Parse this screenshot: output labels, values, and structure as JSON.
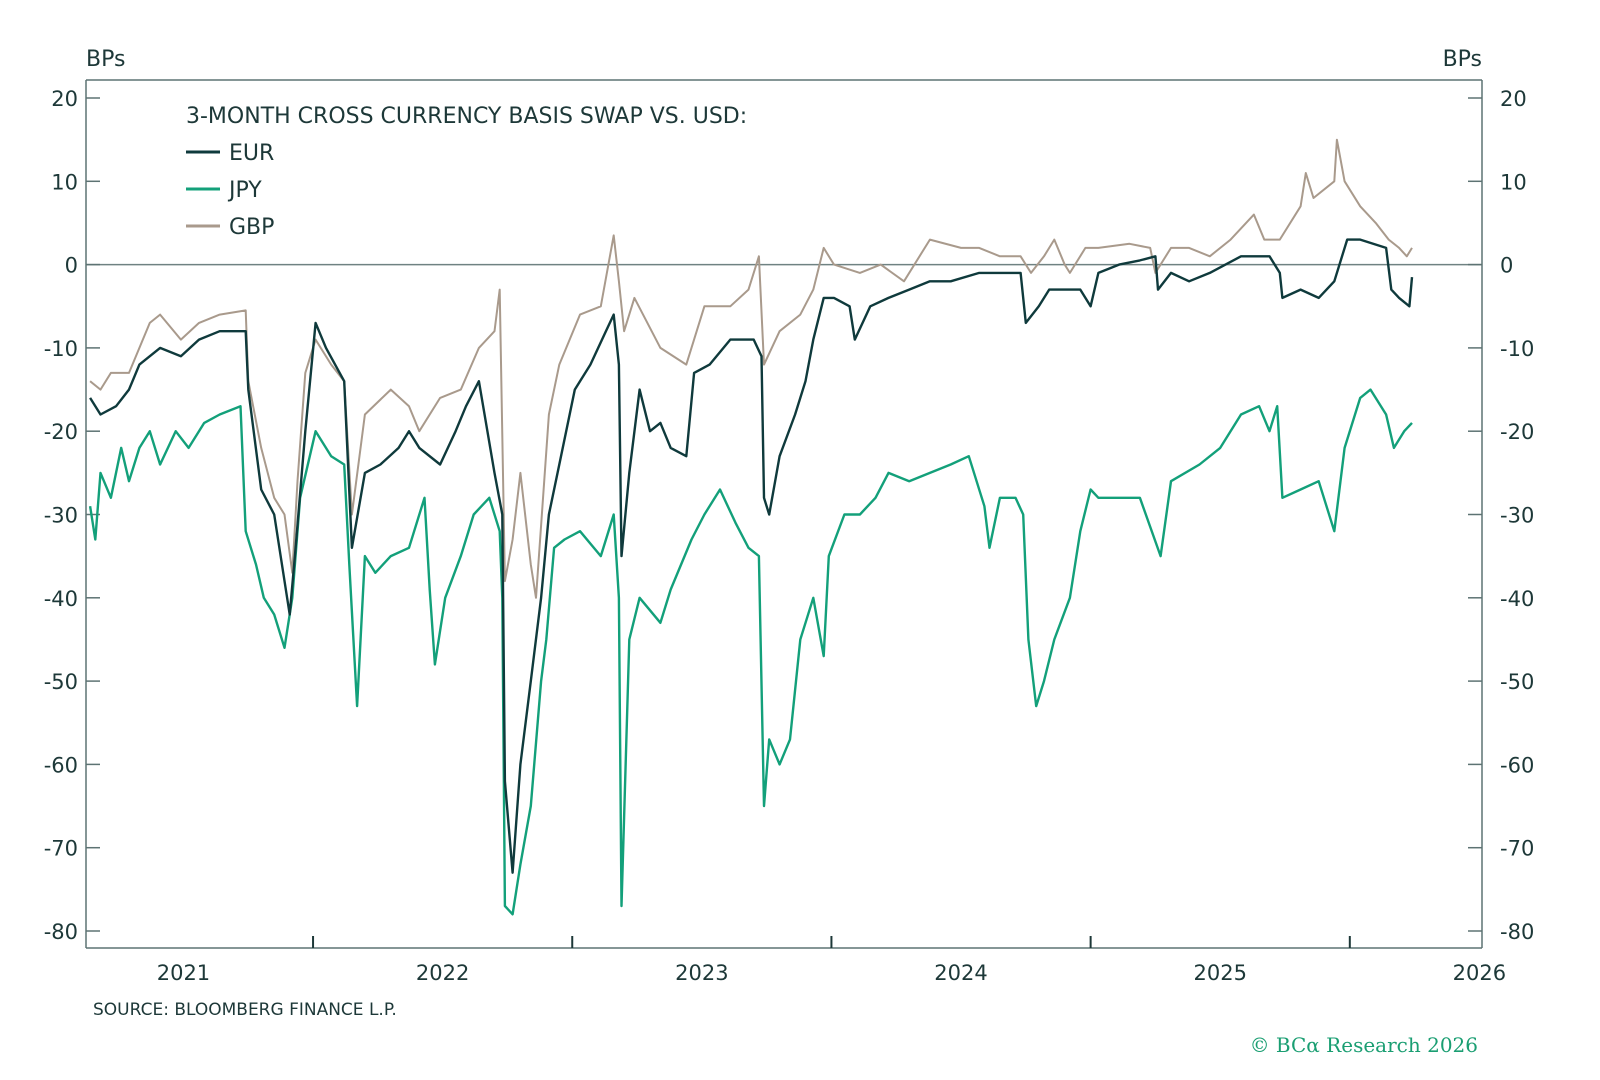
{
  "chart_data": {
    "type": "line",
    "title": "3-MONTH CROSS CURRENCY BASIS SWAP VS. USD:",
    "ylabel_left": "BPs",
    "ylabel_right": "BPs",
    "ylim": [
      -82,
      22
    ],
    "xlim": [
      2021.124,
      2026.51
    ],
    "yticks": [
      20,
      10,
      0,
      -10,
      -20,
      -30,
      -40,
      -50,
      -60,
      -70,
      -80
    ],
    "xticks": [
      2022,
      2023,
      2024,
      2025,
      2026
    ],
    "xtick_labels": [
      "2021",
      "2022",
      "2023",
      "2024",
      "2025",
      "2026"
    ],
    "zero_line": true,
    "grid": false,
    "legend_position": "top-left",
    "source": "SOURCE: BLOOMBERG FINANCE L.P.",
    "copyright": "© BCα Research 2026",
    "series": [
      {
        "name": "EUR",
        "color": "#0f3a3c",
        "points": [
          [
            2021.14,
            -16
          ],
          [
            2021.18,
            -18
          ],
          [
            2021.24,
            -17
          ],
          [
            2021.29,
            -15
          ],
          [
            2021.33,
            -12
          ],
          [
            2021.41,
            -10
          ],
          [
            2021.49,
            -11
          ],
          [
            2021.56,
            -9
          ],
          [
            2021.64,
            -8
          ],
          [
            2021.74,
            -8
          ],
          [
            2021.75,
            -15
          ],
          [
            2021.8,
            -27
          ],
          [
            2021.85,
            -30
          ],
          [
            2021.91,
            -42
          ],
          [
            2021.93,
            -35
          ],
          [
            2021.97,
            -20
          ],
          [
            2022.01,
            -7
          ],
          [
            2022.05,
            -10
          ],
          [
            2022.12,
            -14
          ],
          [
            2022.15,
            -34
          ],
          [
            2022.2,
            -25
          ],
          [
            2022.26,
            -24
          ],
          [
            2022.33,
            -22
          ],
          [
            2022.37,
            -20
          ],
          [
            2022.41,
            -22
          ],
          [
            2022.49,
            -24
          ],
          [
            2022.55,
            -20
          ],
          [
            2022.59,
            -17
          ],
          [
            2022.64,
            -14
          ],
          [
            2022.7,
            -25
          ],
          [
            2022.73,
            -30
          ],
          [
            2022.74,
            -62
          ],
          [
            2022.77,
            -73
          ],
          [
            2022.8,
            -60
          ],
          [
            2022.84,
            -50
          ],
          [
            2022.88,
            -40
          ],
          [
            2022.91,
            -30
          ],
          [
            2022.95,
            -24
          ],
          [
            2023.01,
            -15
          ],
          [
            2023.07,
            -12
          ],
          [
            2023.13,
            -8
          ],
          [
            2023.16,
            -6
          ],
          [
            2023.18,
            -12
          ],
          [
            2023.19,
            -35
          ],
          [
            2023.22,
            -25
          ],
          [
            2023.26,
            -15
          ],
          [
            2023.3,
            -20
          ],
          [
            2023.34,
            -19
          ],
          [
            2023.38,
            -22
          ],
          [
            2023.44,
            -23
          ],
          [
            2023.47,
            -13
          ],
          [
            2023.53,
            -12
          ],
          [
            2023.61,
            -9
          ],
          [
            2023.7,
            -9
          ],
          [
            2023.73,
            -11
          ],
          [
            2023.74,
            -28
          ],
          [
            2023.76,
            -30
          ],
          [
            2023.8,
            -23
          ],
          [
            2023.86,
            -18
          ],
          [
            2023.9,
            -14
          ],
          [
            2023.93,
            -9
          ],
          [
            2023.97,
            -4
          ],
          [
            2024.01,
            -4
          ],
          [
            2024.07,
            -5
          ],
          [
            2024.09,
            -9
          ],
          [
            2024.15,
            -5
          ],
          [
            2024.22,
            -4
          ],
          [
            2024.3,
            -3
          ],
          [
            2024.38,
            -2
          ],
          [
            2024.46,
            -2
          ],
          [
            2024.57,
            -1
          ],
          [
            2024.65,
            -1
          ],
          [
            2024.73,
            -1
          ],
          [
            2024.75,
            -7
          ],
          [
            2024.8,
            -5
          ],
          [
            2024.84,
            -3
          ],
          [
            2024.88,
            -3
          ],
          [
            2024.96,
            -3
          ],
          [
            2025.0,
            -5
          ],
          [
            2025.03,
            -1
          ],
          [
            2025.11,
            0
          ],
          [
            2025.19,
            0.5
          ],
          [
            2025.25,
            1
          ],
          [
            2025.26,
            -3
          ],
          [
            2025.31,
            -1
          ],
          [
            2025.38,
            -2
          ],
          [
            2025.46,
            -1
          ],
          [
            2025.58,
            1
          ],
          [
            2025.69,
            1
          ],
          [
            2025.73,
            -1
          ],
          [
            2025.74,
            -4
          ],
          [
            2025.81,
            -3
          ],
          [
            2025.88,
            -4
          ],
          [
            2025.94,
            -2
          ],
          [
            2025.99,
            3
          ],
          [
            2026.04,
            3
          ],
          [
            2026.14,
            2
          ],
          [
            2026.16,
            -3
          ],
          [
            2026.19,
            -4
          ],
          [
            2026.23,
            -5
          ],
          [
            2026.24,
            -1.5
          ]
        ]
      },
      {
        "name": "JPY",
        "color": "#13a07a",
        "points": [
          [
            2021.14,
            -29
          ],
          [
            2021.16,
            -33
          ],
          [
            2021.18,
            -25
          ],
          [
            2021.22,
            -28
          ],
          [
            2021.26,
            -22
          ],
          [
            2021.29,
            -26
          ],
          [
            2021.33,
            -22
          ],
          [
            2021.37,
            -20
          ],
          [
            2021.41,
            -24
          ],
          [
            2021.47,
            -20
          ],
          [
            2021.52,
            -22
          ],
          [
            2021.58,
            -19
          ],
          [
            2021.64,
            -18
          ],
          [
            2021.72,
            -17
          ],
          [
            2021.74,
            -32
          ],
          [
            2021.78,
            -36
          ],
          [
            2021.81,
            -40
          ],
          [
            2021.85,
            -42
          ],
          [
            2021.89,
            -46
          ],
          [
            2021.92,
            -40
          ],
          [
            2021.95,
            -28
          ],
          [
            2022.01,
            -20
          ],
          [
            2022.07,
            -23
          ],
          [
            2022.12,
            -24
          ],
          [
            2022.14,
            -36
          ],
          [
            2022.17,
            -53
          ],
          [
            2022.2,
            -35
          ],
          [
            2022.24,
            -37
          ],
          [
            2022.3,
            -35
          ],
          [
            2022.37,
            -34
          ],
          [
            2022.43,
            -28
          ],
          [
            2022.45,
            -39
          ],
          [
            2022.47,
            -48
          ],
          [
            2022.51,
            -40
          ],
          [
            2022.57,
            -35
          ],
          [
            2022.62,
            -30
          ],
          [
            2022.68,
            -28
          ],
          [
            2022.72,
            -32
          ],
          [
            2022.73,
            -40
          ],
          [
            2022.74,
            -77
          ],
          [
            2022.77,
            -78
          ],
          [
            2022.8,
            -72
          ],
          [
            2022.84,
            -65
          ],
          [
            2022.88,
            -50
          ],
          [
            2022.9,
            -45
          ],
          [
            2022.93,
            -34
          ],
          [
            2022.97,
            -33
          ],
          [
            2023.03,
            -32
          ],
          [
            2023.11,
            -35
          ],
          [
            2023.16,
            -30
          ],
          [
            2023.18,
            -40
          ],
          [
            2023.19,
            -77
          ],
          [
            2023.22,
            -45
          ],
          [
            2023.26,
            -40
          ],
          [
            2023.34,
            -43
          ],
          [
            2023.38,
            -39
          ],
          [
            2023.46,
            -33
          ],
          [
            2023.51,
            -30
          ],
          [
            2023.57,
            -27
          ],
          [
            2023.63,
            -31
          ],
          [
            2023.68,
            -34
          ],
          [
            2023.72,
            -35
          ],
          [
            2023.74,
            -65
          ],
          [
            2023.76,
            -57
          ],
          [
            2023.8,
            -60
          ],
          [
            2023.84,
            -57
          ],
          [
            2023.88,
            -45
          ],
          [
            2023.93,
            -40
          ],
          [
            2023.97,
            -47
          ],
          [
            2023.99,
            -35
          ],
          [
            2024.05,
            -30
          ],
          [
            2024.11,
            -30
          ],
          [
            2024.17,
            -28
          ],
          [
            2024.22,
            -25
          ],
          [
            2024.3,
            -26
          ],
          [
            2024.38,
            -25
          ],
          [
            2024.46,
            -24
          ],
          [
            2024.53,
            -23
          ],
          [
            2024.59,
            -29
          ],
          [
            2024.61,
            -34
          ],
          [
            2024.65,
            -28
          ],
          [
            2024.71,
            -28
          ],
          [
            2024.74,
            -30
          ],
          [
            2024.76,
            -45
          ],
          [
            2024.79,
            -53
          ],
          [
            2024.82,
            -50
          ],
          [
            2024.86,
            -45
          ],
          [
            2024.92,
            -40
          ],
          [
            2024.96,
            -32
          ],
          [
            2025.0,
            -27
          ],
          [
            2025.03,
            -28
          ],
          [
            2025.11,
            -28
          ],
          [
            2025.19,
            -28
          ],
          [
            2025.27,
            -35
          ],
          [
            2025.31,
            -26
          ],
          [
            2025.42,
            -24
          ],
          [
            2025.5,
            -22
          ],
          [
            2025.58,
            -18
          ],
          [
            2025.65,
            -17
          ],
          [
            2025.69,
            -20
          ],
          [
            2025.72,
            -17
          ],
          [
            2025.74,
            -28
          ],
          [
            2025.81,
            -27
          ],
          [
            2025.88,
            -26
          ],
          [
            2025.94,
            -32
          ],
          [
            2025.98,
            -22
          ],
          [
            2026.04,
            -16
          ],
          [
            2026.08,
            -15
          ],
          [
            2026.14,
            -18
          ],
          [
            2026.17,
            -22
          ],
          [
            2026.21,
            -20
          ],
          [
            2026.24,
            -19
          ]
        ]
      },
      {
        "name": "GBP",
        "color": "#a99a8c",
        "points": [
          [
            2021.14,
            -14
          ],
          [
            2021.18,
            -15
          ],
          [
            2021.22,
            -13
          ],
          [
            2021.29,
            -13
          ],
          [
            2021.37,
            -7
          ],
          [
            2021.41,
            -6
          ],
          [
            2021.49,
            -9
          ],
          [
            2021.56,
            -7
          ],
          [
            2021.64,
            -6
          ],
          [
            2021.74,
            -5.5
          ],
          [
            2021.75,
            -14
          ],
          [
            2021.8,
            -22
          ],
          [
            2021.85,
            -28
          ],
          [
            2021.89,
            -30
          ],
          [
            2021.92,
            -37
          ],
          [
            2021.94,
            -26
          ],
          [
            2021.97,
            -13
          ],
          [
            2022.01,
            -9
          ],
          [
            2022.07,
            -12
          ],
          [
            2022.12,
            -14
          ],
          [
            2022.15,
            -30
          ],
          [
            2022.2,
            -18
          ],
          [
            2022.3,
            -15
          ],
          [
            2022.37,
            -17
          ],
          [
            2022.41,
            -20
          ],
          [
            2022.49,
            -16
          ],
          [
            2022.57,
            -15
          ],
          [
            2022.64,
            -10
          ],
          [
            2022.7,
            -8
          ],
          [
            2022.72,
            -3
          ],
          [
            2022.74,
            -38
          ],
          [
            2022.77,
            -33
          ],
          [
            2022.8,
            -25
          ],
          [
            2022.84,
            -36
          ],
          [
            2022.86,
            -40
          ],
          [
            2022.91,
            -18
          ],
          [
            2022.95,
            -12
          ],
          [
            2023.03,
            -6
          ],
          [
            2023.11,
            -5
          ],
          [
            2023.16,
            3.5
          ],
          [
            2023.18,
            -2
          ],
          [
            2023.2,
            -8
          ],
          [
            2023.24,
            -4
          ],
          [
            2023.34,
            -10
          ],
          [
            2023.44,
            -12
          ],
          [
            2023.51,
            -5
          ],
          [
            2023.61,
            -5
          ],
          [
            2023.68,
            -3
          ],
          [
            2023.72,
            1
          ],
          [
            2023.74,
            -12
          ],
          [
            2023.8,
            -8
          ],
          [
            2023.88,
            -6
          ],
          [
            2023.93,
            -3
          ],
          [
            2023.97,
            2
          ],
          [
            2024.01,
            0
          ],
          [
            2024.11,
            -1
          ],
          [
            2024.19,
            0
          ],
          [
            2024.28,
            -2
          ],
          [
            2024.38,
            3
          ],
          [
            2024.5,
            2
          ],
          [
            2024.57,
            2
          ],
          [
            2024.65,
            1
          ],
          [
            2024.73,
            1
          ],
          [
            2024.77,
            -1
          ],
          [
            2024.82,
            1
          ],
          [
            2024.86,
            3
          ],
          [
            2024.9,
            0
          ],
          [
            2024.92,
            -1
          ],
          [
            2024.98,
            2
          ],
          [
            2025.03,
            2
          ],
          [
            2025.15,
            2.5
          ],
          [
            2025.23,
            2
          ],
          [
            2025.25,
            -1
          ],
          [
            2025.31,
            2
          ],
          [
            2025.38,
            2
          ],
          [
            2025.46,
            1
          ],
          [
            2025.54,
            3
          ],
          [
            2025.63,
            6
          ],
          [
            2025.67,
            3
          ],
          [
            2025.73,
            3
          ],
          [
            2025.81,
            7
          ],
          [
            2025.83,
            11
          ],
          [
            2025.86,
            8
          ],
          [
            2025.94,
            10
          ],
          [
            2025.95,
            15
          ],
          [
            2025.98,
            10
          ],
          [
            2026.04,
            7
          ],
          [
            2026.1,
            5
          ],
          [
            2026.15,
            3
          ],
          [
            2026.19,
            2
          ],
          [
            2026.22,
            1
          ],
          [
            2026.24,
            2
          ]
        ]
      }
    ]
  }
}
